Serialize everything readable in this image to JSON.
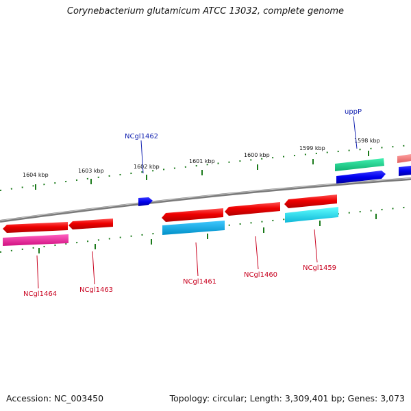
{
  "title": "Corynebacterium glutamicum ATCC 13032, complete genome",
  "footer": {
    "accession": "Accession: NC_003450",
    "info": "Topology: circular; Length: 3,309,401 bp; Genes: 3,073"
  },
  "kbp_labels": [
    "1604 kbp",
    "1603 kbp",
    "1602 kbp",
    "1601 kbp",
    "1600 kbp",
    "1599 kbp",
    "1598 kbp"
  ],
  "gene_labels": {
    "ncgl1462": "NCgl1462",
    "uppP": "uppP",
    "ncgl1464": "NCgl1464",
    "ncgl1463": "NCgl1463",
    "ncgl1461": "NCgl1461",
    "ncgl1460": "NCgl1460",
    "ncgl1459": "NCgl1459"
  },
  "colors": {
    "forward_strand": "#0000ee",
    "reverse_strand": "#ee0000",
    "tick": "#1a7a1a",
    "backbone": "#888888",
    "label_red": "#c8001e",
    "label_blue": "#1020b0"
  }
}
